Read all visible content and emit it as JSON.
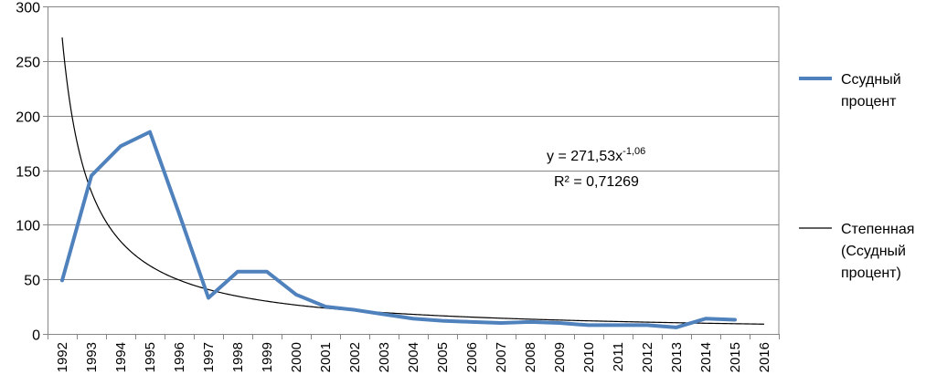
{
  "chart_data": {
    "type": "line",
    "title": "",
    "xlabel": "",
    "ylabel": "",
    "categories": [
      "1992",
      "1993",
      "1994",
      "1995",
      "1996",
      "1997",
      "1998",
      "1999",
      "2000",
      "2001",
      "2002",
      "2003",
      "2004",
      "2005",
      "2006",
      "2007",
      "2008",
      "2009",
      "2010",
      "2011",
      "2012",
      "2013",
      "2014",
      "2015",
      "2016"
    ],
    "y_ticks": [
      "0",
      "50",
      "100",
      "150",
      "200",
      "250",
      "300"
    ],
    "ylim": [
      0,
      300
    ],
    "grid": "horizontal",
    "legend_position": "right",
    "series": [
      {
        "name": "Ссудный процент",
        "legend_lines": [
          "Ссудный",
          "процент"
        ],
        "color": "#4f81bd",
        "values": [
          49,
          145,
          172,
          185,
          110,
          33,
          57,
          57,
          36,
          25,
          22,
          18,
          14,
          12,
          11,
          10,
          11,
          10,
          8,
          8,
          8,
          6,
          14,
          13,
          null
        ]
      },
      {
        "name": "Степенная (Ссудный процент)",
        "legend_lines": [
          "Степенная",
          "(Ссудный",
          "процент)"
        ],
        "color": "#000000",
        "trendline": {
          "type": "power",
          "a": 271.53,
          "b": -1.06
        }
      }
    ],
    "annotations": {
      "equation_base": "y = 271,53x",
      "equation_exp": "-1,06",
      "r_squared": "R² = 0,71269"
    }
  }
}
